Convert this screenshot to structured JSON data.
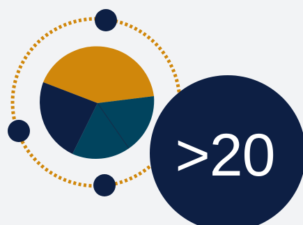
{
  "colors": {
    "background": "#f2f3f5",
    "navy": "#0d1f44",
    "teal": "#01445e",
    "gold": "#d0870b"
  },
  "icons": {
    "pie": "pie-chart-icon",
    "orbit": "dotted-orbit-icon",
    "nodes": "orbit-node-icon"
  },
  "stat": {
    "value": ">20"
  }
}
